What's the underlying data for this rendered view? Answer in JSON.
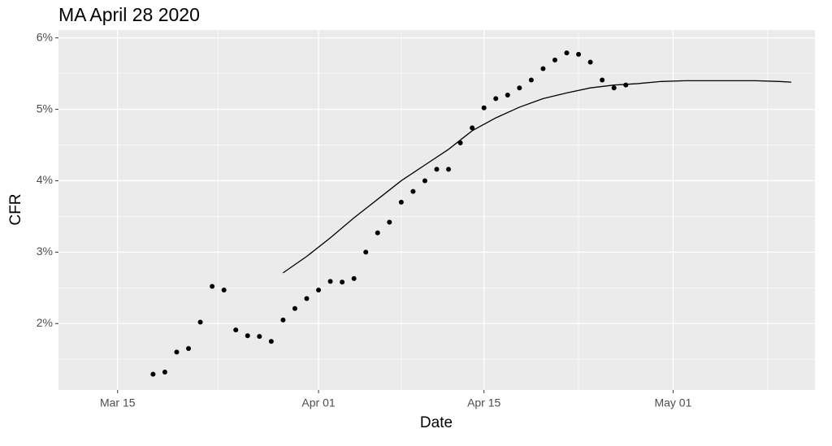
{
  "chart_data": {
    "type": "scatter",
    "title": "MA April 28 2020",
    "x_label": "Date",
    "y_label": "CFR",
    "xlim": [
      "Mar 10",
      "May 13"
    ],
    "xticks": [
      "Mar 15",
      "Apr 01",
      "Apr 15",
      "May 01"
    ],
    "ylim": [
      1.07,
      6.11
    ],
    "yticks": [
      {
        "value": 2,
        "label": "2%"
      },
      {
        "value": 3,
        "label": "3%"
      },
      {
        "value": 4,
        "label": "4%"
      },
      {
        "value": 5,
        "label": "5%"
      },
      {
        "value": 6,
        "label": "6%"
      }
    ],
    "grid": true,
    "series": [
      {
        "type": "scatter",
        "color": "#000000",
        "x": [
          "Mar 18",
          "Mar 19",
          "Mar 20",
          "Mar 21",
          "Mar 22",
          "Mar 23",
          "Mar 24",
          "Mar 25",
          "Mar 26",
          "Mar 27",
          "Mar 28",
          "Mar 29",
          "Mar 30",
          "Mar 31",
          "Apr 01",
          "Apr 02",
          "Apr 03",
          "Apr 04",
          "Apr 05",
          "Apr 06",
          "Apr 07",
          "Apr 08",
          "Apr 09",
          "Apr 10",
          "Apr 11",
          "Apr 12",
          "Apr 13",
          "Apr 14",
          "Apr 15",
          "Apr 16",
          "Apr 17",
          "Apr 18",
          "Apr 19",
          "Apr 20",
          "Apr 21",
          "Apr 22",
          "Apr 23",
          "Apr 24",
          "Apr 25",
          "Apr 26",
          "Apr 27"
        ],
        "values": [
          1.29,
          1.32,
          1.6,
          1.65,
          2.02,
          2.52,
          2.47,
          1.91,
          1.83,
          1.82,
          1.75,
          2.05,
          2.21,
          2.35,
          2.47,
          2.59,
          2.58,
          2.63,
          3.0,
          3.27,
          3.42,
          3.7,
          3.85,
          4.0,
          4.16,
          4.16,
          4.53,
          4.74,
          5.02,
          5.15,
          5.2,
          5.3,
          5.41,
          5.57,
          5.69,
          5.79,
          5.77,
          5.66,
          5.41,
          5.3,
          5.34
        ]
      },
      {
        "type": "line",
        "color": "#000000",
        "x": [
          "Mar 29",
          "Mar 31",
          "Apr 02",
          "Apr 04",
          "Apr 06",
          "Apr 08",
          "Apr 10",
          "Apr 12",
          "Apr 14",
          "Apr 16",
          "Apr 18",
          "Apr 20",
          "Apr 22",
          "Apr 24",
          "Apr 26",
          "Apr 28",
          "Apr 30",
          "May 02",
          "May 04",
          "May 06",
          "May 08",
          "May 10",
          "May 11"
        ],
        "values": [
          2.71,
          2.94,
          3.2,
          3.48,
          3.74,
          4.0,
          4.22,
          4.44,
          4.7,
          4.88,
          5.03,
          5.15,
          5.23,
          5.3,
          5.34,
          5.36,
          5.39,
          5.4,
          5.4,
          5.4,
          5.4,
          5.39,
          5.38
        ]
      }
    ]
  }
}
